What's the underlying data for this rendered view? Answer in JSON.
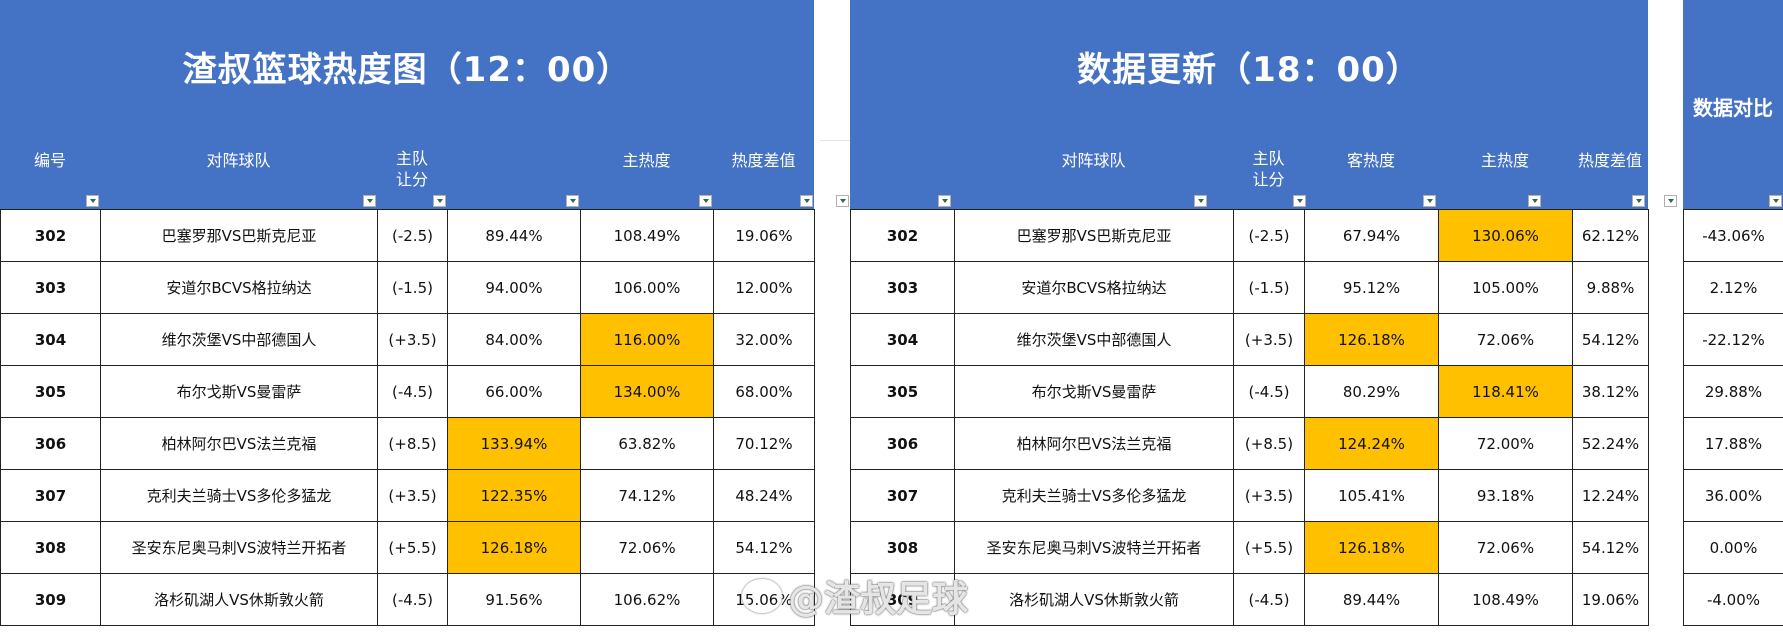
{
  "left": {
    "title": "渣叔篮球热度图（12：00）",
    "headers": {
      "id": "编号",
      "teams": "对阵球队",
      "handicap_1": "主队",
      "handicap_2": "让分",
      "away_heat": "",
      "home_heat": "主热度",
      "diff": "热度差值"
    },
    "rows": [
      {
        "id": "302",
        "teams": "巴塞罗那VS巴斯克尼亚",
        "handicap": "(-2.5)",
        "away": "89.44%",
        "home": "108.49%",
        "diff": "19.06%"
      },
      {
        "id": "303",
        "teams": "安道尔BCVS格拉纳达",
        "handicap": "(-1.5)",
        "away": "94.00%",
        "home": "106.00%",
        "diff": "12.00%"
      },
      {
        "id": "304",
        "teams": "维尔茨堡VS中部德国人",
        "handicap": "(+3.5)",
        "away": "84.00%",
        "home": "116.00%",
        "diff": "32.00%"
      },
      {
        "id": "305",
        "teams": "布尔戈斯VS曼雷萨",
        "handicap": "(-4.5)",
        "away": "66.00%",
        "home": "134.00%",
        "diff": "68.00%"
      },
      {
        "id": "306",
        "teams": "柏林阿尔巴VS法兰克福",
        "handicap": "(+8.5)",
        "away": "133.94%",
        "home": "63.82%",
        "diff": "70.12%"
      },
      {
        "id": "307",
        "teams": "克利夫兰骑士VS多伦多猛龙",
        "handicap": "(+3.5)",
        "away": "122.35%",
        "home": "74.12%",
        "diff": "48.24%"
      },
      {
        "id": "308",
        "teams": "圣安东尼奥马刺VS波特兰开拓者",
        "handicap": "(+5.5)",
        "away": "126.18%",
        "home": "72.06%",
        "diff": "54.12%"
      },
      {
        "id": "309",
        "teams": "洛杉矶湖人VS休斯敦火箭",
        "handicap": "(-4.5)",
        "away": "91.56%",
        "home": "106.62%",
        "diff": "15.06%"
      }
    ]
  },
  "right": {
    "title": "数据更新（18：00）",
    "headers": {
      "teams": "对阵球队",
      "handicap_1": "主队",
      "handicap_2": "让分",
      "away_heat": "客热度",
      "home_heat": "主热度",
      "diff": "热度差值"
    },
    "rows": [
      {
        "id": "302",
        "teams": "巴塞罗那VS巴斯克尼亚",
        "handicap": "(-2.5)",
        "away": "67.94%",
        "home": "130.06%",
        "diff": "62.12%"
      },
      {
        "id": "303",
        "teams": "安道尔BCVS格拉纳达",
        "handicap": "(-1.5)",
        "away": "95.12%",
        "home": "105.00%",
        "diff": "9.88%"
      },
      {
        "id": "304",
        "teams": "维尔茨堡VS中部德国人",
        "handicap": "(+3.5)",
        "away": "126.18%",
        "home": "72.06%",
        "diff": "54.12%"
      },
      {
        "id": "305",
        "teams": "布尔戈斯VS曼雷萨",
        "handicap": "(-4.5)",
        "away": "80.29%",
        "home": "118.41%",
        "diff": "38.12%"
      },
      {
        "id": "306",
        "teams": "柏林阿尔巴VS法兰克福",
        "handicap": "(+8.5)",
        "away": "124.24%",
        "home": "72.00%",
        "diff": "52.24%"
      },
      {
        "id": "307",
        "teams": "克利夫兰骑士VS多伦多猛龙",
        "handicap": "(+3.5)",
        "away": "105.41%",
        "home": "93.18%",
        "diff": "12.24%"
      },
      {
        "id": "308",
        "teams": "圣安东尼奥马刺VS波特兰开拓者",
        "handicap": "(+5.5)",
        "away": "126.18%",
        "home": "72.06%",
        "diff": "54.12%"
      },
      {
        "id": "309",
        "teams": "洛杉矶湖人VS休斯敦火箭",
        "handicap": "(-4.5)",
        "away": "89.44%",
        "home": "108.49%",
        "diff": "19.06%"
      }
    ]
  },
  "compare": {
    "title": "数据对比",
    "values": [
      "-43.06%",
      "2.12%",
      "-22.12%",
      "29.88%",
      "17.88%",
      "36.00%",
      "0.00%",
      "-4.00%"
    ]
  },
  "highlight_color": "#FFC000",
  "header_color": "#4472C4",
  "watermark": "@渣叔足球"
}
